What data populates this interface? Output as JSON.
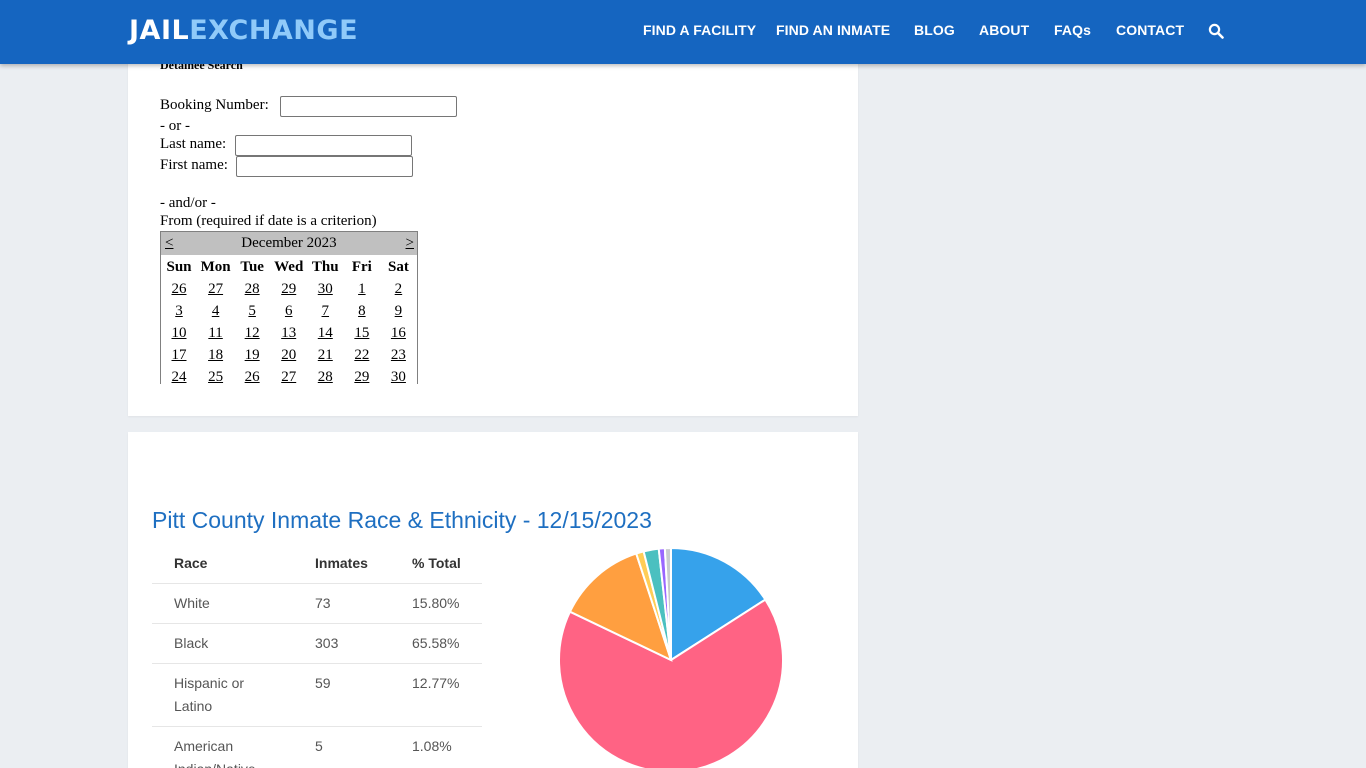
{
  "header": {
    "logo_part1": "JAIL",
    "logo_part2": "EXCHANGE",
    "nav": [
      "FIND A FACILITY",
      "FIND AN INMATE",
      "BLOG",
      "ABOUT",
      "FAQs",
      "CONTACT"
    ],
    "search_icon": "search-icon"
  },
  "search_form": {
    "heading": "Detainee Search",
    "booking_label": "Booking Number:",
    "booking_value": "",
    "or_text": "- or -",
    "last_label": "Last name:",
    "last_value": "",
    "first_label": "First name:",
    "first_value": "",
    "andor_text": "- and/or -",
    "from_label": "From (required if date is a criterion)"
  },
  "calendar": {
    "month": "December 2023",
    "prev": "<",
    "next": ">",
    "days": [
      "Sun",
      "Mon",
      "Tue",
      "Wed",
      "Thu",
      "Fri",
      "Sat"
    ],
    "weeks": [
      [
        "26",
        "27",
        "28",
        "29",
        "30",
        "1",
        "2"
      ],
      [
        "3",
        "4",
        "5",
        "6",
        "7",
        "8",
        "9"
      ],
      [
        "10",
        "11",
        "12",
        "13",
        "14",
        "15",
        "16"
      ],
      [
        "17",
        "18",
        "19",
        "20",
        "21",
        "22",
        "23"
      ],
      [
        "24",
        "25",
        "26",
        "27",
        "28",
        "29",
        "30"
      ]
    ]
  },
  "race_section": {
    "title": "Pitt County Inmate Race & Ethnicity - 12/15/2023",
    "columns": [
      "Race",
      "Inmates",
      "% Total"
    ],
    "rows": [
      {
        "race": "White",
        "inmates": "73",
        "pct": "15.80%"
      },
      {
        "race": "Black",
        "inmates": "303",
        "pct": "65.58%"
      },
      {
        "race": "Hispanic or Latino",
        "inmates": "59",
        "pct": "12.77%"
      },
      {
        "race": "American Indian/Native",
        "inmates": "5",
        "pct": "1.08%"
      }
    ]
  },
  "chart_data": {
    "type": "pie",
    "values": [
      73,
      303,
      59,
      5,
      10,
      4,
      4
    ],
    "colors": [
      "#36a2eb",
      "#ff6384",
      "#ff9f40",
      "#ffcd56",
      "#4bc0c0",
      "#9966ff",
      "#c9cbcf"
    ]
  }
}
